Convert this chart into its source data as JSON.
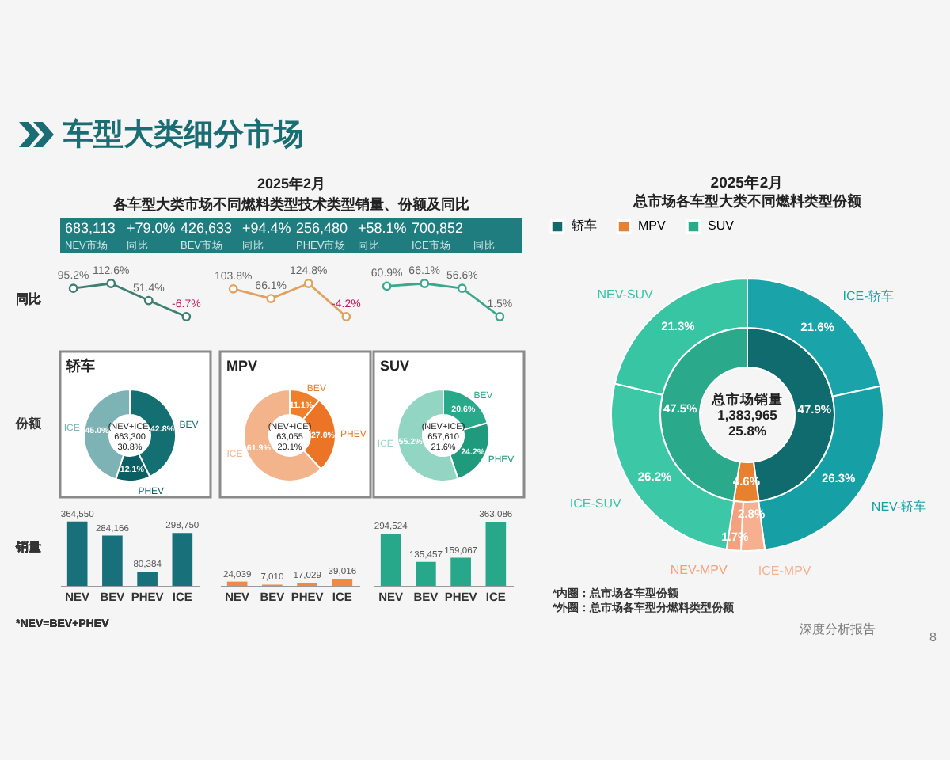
{
  "chart_data": [
    {
      "type": "other",
      "title": "车型大类细分市场",
      "annotations": [
        "深度分析报告",
        "8"
      ]
    },
    {
      "type": "other",
      "title": "2025年2月",
      "subtitle": "各车型大类市场不同燃料类型技术类型销量、份额及同比",
      "annotations": [
        "683,113",
        "NEV市场",
        "同比",
        "+79.0%",
        "426,633",
        "BEV市场",
        "同比",
        "+94.4%",
        "256,480",
        "PHEV市场",
        "同比",
        "+58.1%",
        "700,852",
        "ICE市场",
        "同比"
      ]
    },
    {
      "type": "line",
      "ylabel": "同比",
      "categories": [
        null,
        null,
        null,
        null
      ],
      "values": [
        95.2,
        112.6,
        51.4,
        -6.7
      ],
      "value_labels": [
        "95.2%",
        "112.6%",
        "51.4%",
        "-6.7%"
      ],
      "color": "#3f7f70",
      "marker": "circle",
      "tick_labels": false
    },
    {
      "type": "line",
      "categories": [
        null,
        null,
        null,
        null
      ],
      "values": [
        103.8,
        66.1,
        124.8,
        -4.2
      ],
      "value_labels": [
        "103.8%",
        "66.1%",
        "124.8%",
        "-4.2%"
      ],
      "color": "#e0a25e",
      "marker": "circle",
      "tick_labels": false
    },
    {
      "type": "line",
      "categories": [
        null,
        null,
        null,
        null
      ],
      "values": [
        60.9,
        66.1,
        56.6,
        1.5
      ],
      "value_labels": [
        "60.9%",
        "66.1%",
        "56.6%",
        "1.5%"
      ],
      "color": "#3aa88c",
      "marker": "circle",
      "tick_labels": false
    },
    {
      "type": "donut",
      "title": "轿车",
      "ylabel": "份额",
      "categories": [
        "BEV",
        "PHEV",
        "ICE"
      ],
      "values": [
        42.8,
        12.1,
        45.0
      ],
      "value_labels": [
        "42.8%",
        "12.1%",
        "45.0%"
      ],
      "colors": [
        "#136f72",
        "#0b5f63",
        "#7db3b4"
      ],
      "annotations": [
        "(NEV+ICE)",
        "663,300",
        "30.8%"
      ]
    },
    {
      "type": "donut",
      "title": "MPV",
      "categories": [
        "BEV",
        "PHEV",
        "ICE"
      ],
      "values": [
        11.1,
        27.0,
        61.9
      ],
      "value_labels": [
        "11.1%",
        "27.0%",
        "61.9%"
      ],
      "colors": [
        "#f07f2c",
        "#ec7426",
        "#f4b48b"
      ],
      "annotations": [
        "(NEV+ICE)",
        "63,055",
        "20.1%"
      ]
    },
    {
      "type": "donut",
      "title": "SUV",
      "categories": [
        "BEV",
        "PHEV",
        "ICE"
      ],
      "values": [
        20.6,
        24.2,
        55.2
      ],
      "value_labels": [
        "20.6%",
        "24.2%",
        "55.2%"
      ],
      "colors": [
        "#28a98a",
        "#1f9a7c",
        "#93d5c3"
      ],
      "annotations": [
        "(NEV+ICE)",
        "657,610",
        "21.6%"
      ]
    },
    {
      "type": "bar",
      "ylabel": "销量",
      "categories": [
        "NEV",
        "BEV",
        "PHEV",
        "ICE"
      ],
      "values": [
        364550,
        284166,
        80384,
        298750
      ],
      "value_labels": [
        "364,550",
        "284,166",
        "80,384",
        "298,750"
      ],
      "color": "#17707a",
      "tick_labels": "x",
      "annotations": [
        "*NEV=BEV+PHEV"
      ]
    },
    {
      "type": "bar",
      "categories": [
        "NEV",
        "BEV",
        "PHEV",
        "ICE"
      ],
      "values": [
        24039,
        7010,
        17029,
        39016
      ],
      "value_labels": [
        "24,039",
        "7,010",
        "17,029",
        "39,016"
      ],
      "color": "#ef8a45",
      "tick_labels": "x"
    },
    {
      "type": "bar",
      "categories": [
        "NEV",
        "BEV",
        "PHEV",
        "ICE"
      ],
      "values": [
        294524,
        135457,
        159067,
        363086
      ],
      "value_labels": [
        "294,524",
        "135,457",
        "159,067",
        "363,086"
      ],
      "color": "#27a88a",
      "tick_labels": "x"
    },
    {
      "type": "donut",
      "title": "2025年2月",
      "subtitle": "总市场各车型大类不同燃料类型份额",
      "legend": "top",
      "categories": [
        "轿车",
        "MPV",
        "SUV"
      ],
      "values": [
        47.9,
        4.6,
        47.5
      ],
      "value_labels": [
        "47.9%",
        "4.6%",
        "47.5%"
      ],
      "colors": [
        "#0f6b6d",
        "#e8812f",
        "#2aa98b"
      ],
      "annotations": [
        "总市场销量",
        "1,383,965",
        "25.8%",
        "*内圈：总市场各车型份额",
        "*外圈：总市场各车型分燃料类型份额"
      ]
    },
    {
      "type": "donut",
      "categories": [
        "ICE-轿车",
        "NEV-轿车",
        "ICE-MPV",
        "NEV-MPV",
        "ICE-SUV",
        "NEV-SUV"
      ],
      "values": [
        21.6,
        26.3,
        2.8,
        1.7,
        26.2,
        21.3
      ],
      "value_labels": [
        "21.6%",
        "26.3%",
        "2.8%",
        "1.7%",
        "26.2%",
        "21.3%"
      ],
      "colors": [
        "#1aa3a8",
        "#16a0a5",
        "#f6b08f",
        "#f3a27d",
        "#3cc8a6",
        "#38c5a3"
      ]
    }
  ]
}
